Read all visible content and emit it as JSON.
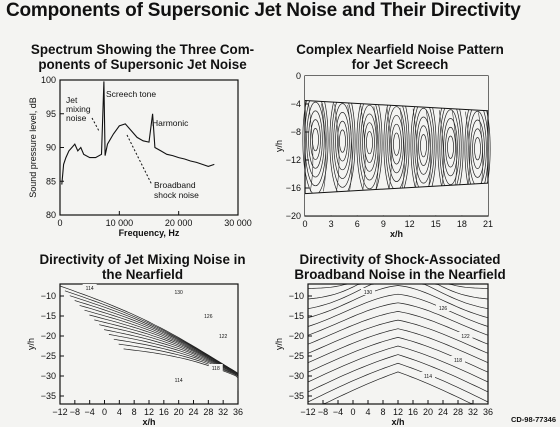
{
  "page": {
    "title": "Components of Supersonic Jet Noise and Their Directivity",
    "doc_id": "CD-98-77346"
  },
  "chart_data": [
    {
      "type": "line",
      "title": "Spectrum Showing the Three Components of Supersonic Jet Noise",
      "title_lines": [
        "Spectrum Showing the Three Com-",
        "ponents of Supersonic Jet Noise"
      ],
      "xlabel": "Frequency, Hz",
      "ylabel": "Sound pressure level, dB",
      "xlim": [
        0,
        30000
      ],
      "ylim": [
        80,
        100
      ],
      "x_ticks": [
        0,
        10000,
        20000,
        30000
      ],
      "x_tick_labels": [
        "0",
        "10 000",
        "20 000",
        "30 000"
      ],
      "y_ticks": [
        80,
        85,
        90,
        95,
        100
      ],
      "grid": false,
      "series": [
        {
          "x": [
            300,
            600,
            1000,
            1500,
            2000,
            2500,
            3000,
            3500,
            4000,
            5000,
            6000,
            7000,
            7400,
            7600,
            8000,
            9000,
            10000,
            11000,
            12000,
            13000,
            14000,
            15000,
            15600,
            16000,
            17000,
            18000,
            19000,
            20000,
            21000,
            22000,
            23000,
            24000,
            25000,
            26000
          ],
          "y": [
            84.5,
            87.5,
            88.5,
            89.5,
            90.0,
            90.5,
            89.5,
            90.0,
            89.0,
            88.5,
            88.5,
            89.0,
            99.8,
            88.8,
            90.5,
            92.0,
            93.2,
            93.5,
            92.5,
            91.5,
            91.0,
            90.8,
            95.0,
            90.0,
            89.5,
            89.0,
            88.8,
            88.5,
            88.3,
            88.0,
            87.8,
            87.5,
            87.2,
            87.5
          ]
        }
      ],
      "annotations": [
        {
          "text_lines": [
            "Jet",
            "mixing",
            "noise"
          ]
        },
        {
          "text_lines": [
            "Screech tone"
          ]
        },
        {
          "text_lines": [
            "Harmonic"
          ]
        },
        {
          "text_lines": [
            "Broadband",
            "shock noise"
          ]
        }
      ]
    },
    {
      "type": "contour",
      "title": "Complex Nearfield Noise Pattern for Jet Screech",
      "title_lines": [
        "Complex Nearfield Noise Pattern",
        "for Jet Screech"
      ],
      "xlabel": "x/h",
      "ylabel": "y/h",
      "xlim": [
        0,
        21
      ],
      "ylim": [
        -20,
        0
      ],
      "x_ticks": [
        0,
        3,
        6,
        9,
        12,
        15,
        18,
        21
      ],
      "y_ticks": [
        0,
        -4,
        -8,
        -12,
        -16,
        -20
      ]
    },
    {
      "type": "contour",
      "title": "Directivity of Jet Mixing Noise in the Nearfield",
      "title_lines": [
        "Directivity of Jet Mixing Noise in",
        "the Nearfield"
      ],
      "xlabel": "x/h",
      "ylabel": "y/h",
      "xlim": [
        -12,
        36
      ],
      "ylim": [
        -37,
        -7
      ],
      "x_ticks": [
        -12,
        -8,
        -4,
        0,
        4,
        8,
        12,
        16,
        20,
        24,
        28,
        32,
        36
      ],
      "y_ticks": [
        -10,
        -15,
        -20,
        -25,
        -30,
        -35
      ],
      "contour_labels": [
        "114",
        "130",
        "126",
        "122",
        "118",
        "114"
      ]
    },
    {
      "type": "contour",
      "title": "Directivity of Shock-Associated Broadband Noise in the Nearfield",
      "title_lines": [
        "Directivity of Shock-Associated",
        "Broadband Noise in the Nearfield"
      ],
      "xlabel": "x/h",
      "ylabel": "y/h",
      "xlim": [
        -12,
        36
      ],
      "ylim": [
        -37,
        -7
      ],
      "x_ticks": [
        -12,
        -8,
        -4,
        0,
        4,
        8,
        12,
        16,
        20,
        24,
        28,
        32,
        36
      ],
      "y_ticks": [
        -10,
        -15,
        -20,
        -25,
        -30,
        -35
      ],
      "contour_labels": [
        "130",
        "126",
        "122",
        "118",
        "114"
      ]
    }
  ]
}
